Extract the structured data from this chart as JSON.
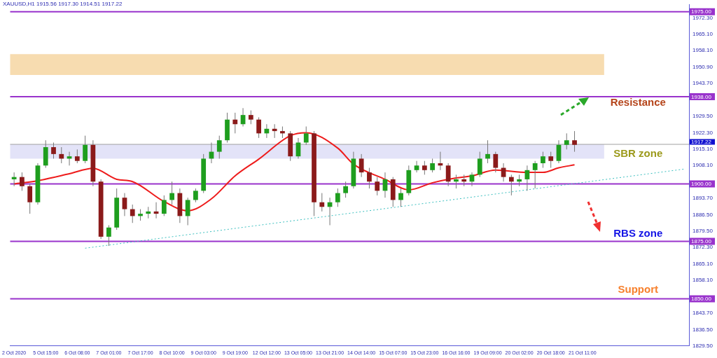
{
  "chart_data": {
    "type": "candlestick",
    "title": "XAUUSD,H1  1915.56 1917.30 1914.51 1917.22",
    "categories": [
      "2 Oct 2020",
      null,
      null,
      null,
      "5 Oct 15:00",
      null,
      null,
      null,
      "6 Oct 08:00",
      null,
      null,
      null,
      "7 Oct 01:00",
      null,
      null,
      null,
      "7 Oct 17:00",
      null,
      null,
      null,
      "8 Oct 10:00",
      null,
      null,
      null,
      "9 Oct 03:00",
      null,
      null,
      null,
      "9 Oct 19:00",
      null,
      null,
      null,
      "12 Oct 12:00",
      null,
      null,
      null,
      "13 Oct 05:00",
      null,
      null,
      null,
      "13 Oct 21:00",
      null,
      null,
      null,
      "14 Oct 14:00",
      null,
      null,
      null,
      "15 Oct 07:00",
      null,
      null,
      null,
      "15 Oct 23:00",
      null,
      null,
      null,
      "16 Oct 16:00",
      null,
      null,
      null,
      "19 Oct 09:00",
      null,
      null,
      null,
      "20 Oct 02:00",
      null,
      null,
      null,
      "20 Oct 18:00",
      null,
      null,
      null,
      "21 Oct 11:00",
      null,
      null,
      null,
      null,
      null,
      null,
      null,
      null,
      null,
      null,
      null,
      null,
      null
    ],
    "ohlc": [
      [
        1902,
        1905,
        1899,
        1903
      ],
      [
        1903,
        1905,
        1897,
        1899
      ],
      [
        1899,
        1900,
        1887,
        1892
      ],
      [
        1892,
        1909,
        1891,
        1908
      ],
      [
        1908,
        1919,
        1907,
        1916
      ],
      [
        1916,
        1918,
        1911,
        1913
      ],
      [
        1913,
        1916,
        1909,
        1911
      ],
      [
        1911,
        1914,
        1908,
        1912
      ],
      [
        1912,
        1915,
        1909,
        1910
      ],
      [
        1910,
        1921,
        1909,
        1917
      ],
      [
        1917,
        1919,
        1899,
        1901
      ],
      [
        1901,
        1902,
        1876,
        1877
      ],
      [
        1877,
        1882,
        1873,
        1881
      ],
      [
        1881,
        1898,
        1880,
        1894
      ],
      [
        1894,
        1896,
        1886,
        1889
      ],
      [
        1889,
        1891,
        1883,
        1886
      ],
      [
        1886,
        1889,
        1884,
        1887
      ],
      [
        1887,
        1890,
        1885,
        1888
      ],
      [
        1888,
        1892,
        1885,
        1887
      ],
      [
        1887,
        1895,
        1886,
        1893
      ],
      [
        1893,
        1901,
        1891,
        1896
      ],
      [
        1896,
        1898,
        1883,
        1886
      ],
      [
        1886,
        1894,
        1882,
        1893
      ],
      [
        1893,
        1898,
        1892,
        1897
      ],
      [
        1897,
        1913,
        1896,
        1911
      ],
      [
        1911,
        1918,
        1909,
        1914
      ],
      [
        1914,
        1921,
        1911,
        1919
      ],
      [
        1919,
        1931,
        1918,
        1928
      ],
      [
        1928,
        1931,
        1922,
        1926
      ],
      [
        1926,
        1933,
        1925,
        1930
      ],
      [
        1930,
        1932,
        1926,
        1928
      ],
      [
        1928,
        1929,
        1920,
        1922
      ],
      [
        1922,
        1926,
        1920,
        1924
      ],
      [
        1924,
        1926,
        1920,
        1923
      ],
      [
        1923,
        1925,
        1920,
        1922
      ],
      [
        1922,
        1923,
        1910,
        1912
      ],
      [
        1912,
        1920,
        1911,
        1918
      ],
      [
        1918,
        1925,
        1917,
        1922
      ],
      [
        1922,
        1923,
        1886,
        1892
      ],
      [
        1892,
        1896,
        1888,
        1890
      ],
      [
        1890,
        1894,
        1882,
        1892
      ],
      [
        1892,
        1898,
        1890,
        1896
      ],
      [
        1896,
        1901,
        1894,
        1899
      ],
      [
        1899,
        1914,
        1898,
        1911
      ],
      [
        1911,
        1913,
        1903,
        1905
      ],
      [
        1905,
        1907,
        1898,
        1901
      ],
      [
        1901,
        1903,
        1895,
        1897
      ],
      [
        1897,
        1905,
        1894,
        1902
      ],
      [
        1902,
        1903,
        1890,
        1893
      ],
      [
        1893,
        1898,
        1890,
        1896
      ],
      [
        1896,
        1908,
        1895,
        1906
      ],
      [
        1906,
        1910,
        1905,
        1908
      ],
      [
        1908,
        1910,
        1904,
        1906
      ],
      [
        1906,
        1911,
        1905,
        1909
      ],
      [
        1909,
        1914,
        1906,
        1908
      ],
      [
        1908,
        1909,
        1899,
        1901
      ],
      [
        1901,
        1904,
        1898,
        1902
      ],
      [
        1902,
        1904,
        1899,
        1901
      ],
      [
        1901,
        1905,
        1899,
        1904
      ],
      [
        1904,
        1914,
        1903,
        1911
      ],
      [
        1911,
        1919,
        1909,
        1913
      ],
      [
        1913,
        1914,
        1905,
        1907
      ],
      [
        1907,
        1909,
        1901,
        1903
      ],
      [
        1903,
        1904,
        1895,
        1901
      ],
      [
        1901,
        1904,
        1899,
        1902
      ],
      [
        1902,
        1908,
        1897,
        1906
      ],
      [
        1906,
        1910,
        1898,
        1909
      ],
      [
        1909,
        1914,
        1907,
        1912
      ],
      [
        1912,
        1914,
        1907,
        1910
      ],
      [
        1910,
        1919,
        1909,
        1917
      ],
      [
        1917,
        1922,
        1915,
        1919
      ],
      [
        1919,
        1923,
        1914,
        1917
      ],
      null,
      null,
      null,
      null,
      null,
      null,
      null,
      null,
      null,
      null,
      null,
      null,
      null,
      null
    ],
    "colors": [
      "#1e9e1e",
      "#8b1a1a",
      "#8b1a1a",
      "#1e9e1e",
      "#1e9e1e",
      "#8b1a1a",
      "#8b1a1a",
      "#1e9e1e",
      "#8b1a1a",
      "#1e9e1e",
      "#8b1a1a",
      "#8b1a1a",
      "#1e9e1e",
      "#1e9e1e",
      "#8b1a1a",
      "#8b1a1a",
      "#1e9e1e",
      "#1e9e1e",
      "#8b1a1a",
      "#1e9e1e",
      "#1e9e1e",
      "#8b1a1a",
      "#1e9e1e",
      "#1e9e1e",
      "#1e9e1e",
      "#1e9e1e",
      "#1e9e1e",
      "#1e9e1e",
      "#8b1a1a",
      "#1e9e1e",
      "#8b1a1a",
      "#8b1a1a",
      "#1e9e1e",
      "#8b1a1a",
      "#8b1a1a",
      "#8b1a1a",
      "#1e9e1e",
      "#1e9e1e",
      "#8b1a1a",
      "#8b1a1a",
      "#1e9e1e",
      "#1e9e1e",
      "#1e9e1e",
      "#1e9e1e",
      "#8b1a1a",
      "#8b1a1a",
      "#8b1a1a",
      "#1e9e1e",
      "#8b1a1a",
      "#1e9e1e",
      "#1e9e1e",
      "#1e9e1e",
      "#8b1a1a",
      "#1e9e1e",
      "#8b1a1a",
      "#8b1a1a",
      "#1e9e1e",
      "#8b1a1a",
      "#1e9e1e",
      "#1e9e1e",
      "#1e9e1e",
      "#8b1a1a",
      "#8b1a1a",
      "#8b1a1a",
      "#1e9e1e",
      "#1e9e1e",
      "#1e9e1e",
      "#1e9e1e",
      "#8b1a1a",
      "#1e9e1e",
      "#1e9e1e",
      "#8b1a1a",
      null,
      null,
      null,
      null,
      null,
      null,
      null,
      null,
      null,
      null,
      null,
      null,
      null,
      null
    ],
    "series": [
      {
        "type": "line",
        "color": "#ee1c1c",
        "line_style": "solid",
        "values": [
          1900,
          null,
          null,
          1901.4,
          null,
          null,
          null,
          1904.4,
          null,
          null,
          1906.8,
          null,
          null,
          1902,
          null,
          1901,
          null,
          null,
          null,
          1892.3,
          null,
          null,
          1888.3,
          null,
          null,
          1893.5,
          null,
          null,
          1903.5,
          null,
          null,
          1910.8,
          null,
          null,
          null,
          1921,
          null,
          1922.3,
          null,
          null,
          null,
          1915.6,
          null,
          1908.6,
          null,
          null,
          null,
          1902,
          null,
          null,
          1897.4,
          null,
          null,
          1900.5,
          null,
          null,
          1902.6,
          null,
          1903.5,
          null,
          null,
          1906,
          null,
          null,
          null,
          1905,
          null,
          1905,
          null,
          1907,
          null,
          1908.3,
          null,
          null,
          null,
          null,
          null,
          null,
          null,
          null,
          null,
          null,
          null,
          null,
          null,
          null
        ]
      },
      {
        "type": "line",
        "color": "#3cbfbf",
        "line_style": "dotted",
        "values": [
          null,
          null,
          null,
          null,
          null,
          null,
          null,
          null,
          null,
          1872,
          null,
          null,
          null,
          null,
          null,
          null,
          null,
          null,
          null,
          null,
          null,
          null,
          null,
          null,
          null,
          null,
          null,
          null,
          null,
          null,
          null,
          null,
          null,
          null,
          null,
          null,
          null,
          null,
          null,
          null,
          null,
          null,
          null,
          null,
          null,
          null,
          null,
          null,
          null,
          null,
          null,
          null,
          null,
          null,
          null,
          null,
          null,
          null,
          null,
          null,
          null,
          null,
          null,
          null,
          null,
          null,
          null,
          null,
          null,
          null,
          null,
          null,
          null,
          null,
          null,
          null,
          null,
          null,
          null,
          null,
          null,
          null,
          null,
          null,
          null,
          1906.5
        ]
      }
    ],
    "ylim": [
      1829.5,
      1978
    ],
    "yticks": [
      {
        "value": 1829.5,
        "label": "1829.50"
      },
      {
        "value": 1836.5,
        "label": "1836.50"
      },
      {
        "value": 1843.7,
        "label": "1843.70"
      },
      {
        "value": 1858.1,
        "label": "1858.10"
      },
      {
        "value": 1865.1,
        "label": "1865.10"
      },
      {
        "value": 1872.3,
        "label": "1872.30"
      },
      {
        "value": 1879.5,
        "label": "1879.50"
      },
      {
        "value": 1886.5,
        "label": "1886.50"
      },
      {
        "value": 1893.7,
        "label": "1893.70"
      },
      {
        "value": 1908.1,
        "label": "1908.10"
      },
      {
        "value": 1915.1,
        "label": "1915.10"
      },
      {
        "value": 1922.3,
        "label": "1922.30"
      },
      {
        "value": 1929.5,
        "label": "1929.50"
      },
      {
        "value": 1943.7,
        "label": "1943.70"
      },
      {
        "value": 1950.9,
        "label": "1950.90"
      },
      {
        "value": 1958.1,
        "label": "1958.10"
      },
      {
        "value": 1965.1,
        "label": "1965.10"
      },
      {
        "value": 1972.3,
        "label": "1972.30"
      }
    ],
    "ref_lines": [
      {
        "axis": "y",
        "value": 1975,
        "label": "1975.00",
        "color": "#9933cc"
      },
      {
        "axis": "y",
        "value": 1938,
        "label": "1938.00",
        "color": "#9933cc"
      },
      {
        "axis": "y",
        "value": 1917.22,
        "label": "1917.22",
        "color": "#a0a0a0"
      },
      {
        "axis": "y",
        "value": 1900,
        "label": "1900.00",
        "color": "#9933cc"
      },
      {
        "axis": "y",
        "value": 1875,
        "label": "1875.00",
        "color": "#9933cc"
      },
      {
        "axis": "y",
        "value": 1850,
        "label": "1850.00",
        "color": "#9933cc"
      }
    ],
    "bands": [
      {
        "axis": "y",
        "from": 1947.4,
        "to": 1956.5,
        "color": "#f7dcb0"
      },
      {
        "axis": "y",
        "from": 1911,
        "to": 1917.22,
        "color": "#e3e3f8"
      }
    ],
    "annotations": [
      "Resistance",
      "SBR zone",
      "RBS zone",
      "Support"
    ],
    "grid": false,
    "legend": false
  }
}
